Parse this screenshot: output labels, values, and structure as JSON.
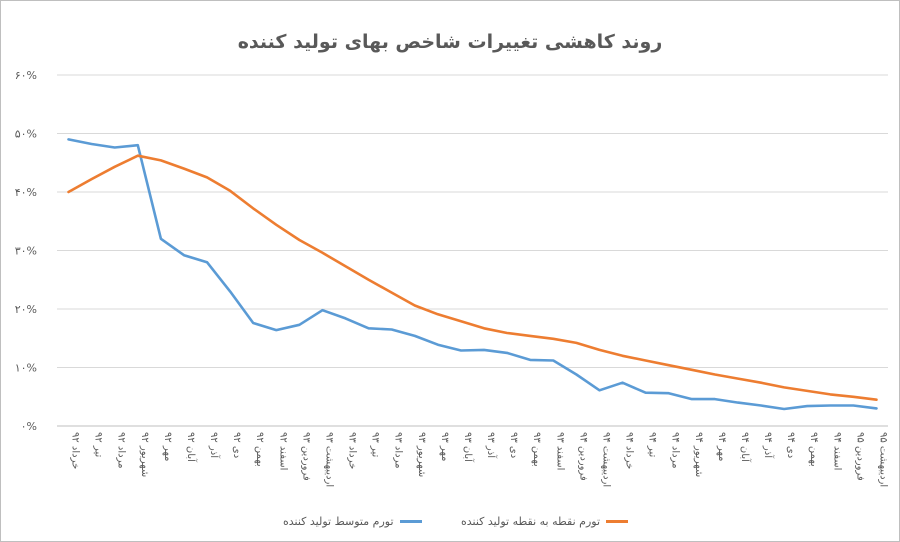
{
  "chart_data": {
    "type": "line",
    "title": "روند کاهشی تغییرات شاخص بهای تولید کننده",
    "xlabel": "",
    "ylabel": "",
    "ylim": [
      0,
      60
    ],
    "yticks": [
      0,
      10,
      20,
      30,
      40,
      50,
      60
    ],
    "ytick_labels": [
      "۰%",
      "۱۰%",
      "۲۰%",
      "۳۰%",
      "۴۰%",
      "۵۰%",
      "۶۰%"
    ],
    "grid": true,
    "legend_position": "bottom",
    "categories": [
      "خرداد ۹۲",
      "تیر ۹۲",
      "مرداد ۹۲",
      "شهریور ۹۲",
      "مهر ۹۲",
      "آبان ۹۲",
      "آذر ۹۲",
      "دی ۹۲",
      "بهمن ۹۲",
      "اسفند ۹۲",
      "فروردین ۹۳",
      "اردیبهشت ۹۳",
      "خرداد ۹۳",
      "تیر ۹۳",
      "مرداد ۹۳",
      "شهریور ۹۳",
      "مهر ۹۳",
      "آبان ۹۳",
      "آذر ۹۳",
      "دی ۹۳",
      "بهمن ۹۳",
      "اسفند ۹۳",
      "فروردین ۹۴",
      "اردیبهشت ۹۴",
      "خرداد ۹۴",
      "تیر ۹۴",
      "مرداد ۹۴",
      "شهریور ۹۴",
      "مهر ۹۴",
      "آبان ۹۴",
      "آذر ۹۴",
      "دی ۹۴",
      "بهمن ۹۴",
      "اسفند ۹۴",
      "فروردین ۹۵",
      "اردیبهشت ۹۵"
    ],
    "series": [
      {
        "name": "تورم متوسط تولید کننده",
        "color": "#5B9BD5",
        "values": [
          49.0,
          48.2,
          47.6,
          48.0,
          32.0,
          29.2,
          28.0,
          23.0,
          17.6,
          16.4,
          17.3,
          19.8,
          18.4,
          16.7,
          16.5,
          15.4,
          13.9,
          12.9,
          13.0,
          12.5,
          11.3,
          11.2,
          8.8,
          6.1,
          7.4,
          5.7,
          5.6,
          4.6,
          4.6,
          4.0,
          3.5,
          2.9,
          3.4,
          3.5,
          3.5,
          3.0
        ],
        "legend_label": "تورم متوسط تولید کننده"
      },
      {
        "name": "تورم نقطه به نقطه تولید کننده",
        "color": "#ED7D31",
        "values": [
          40.0,
          42.2,
          44.3,
          46.2,
          45.4,
          44.0,
          42.5,
          40.2,
          37.2,
          34.4,
          31.8,
          29.6,
          27.3,
          25.0,
          22.8,
          20.6,
          19.1,
          17.9,
          16.7,
          15.9,
          15.4,
          14.9,
          14.2,
          13.0,
          12.0,
          11.2,
          10.4,
          9.6,
          8.8,
          8.1,
          7.4,
          6.6,
          6.0,
          5.4,
          5.0,
          4.5
        ],
        "legend_label": "تورم نقطه به نقطه تولید کننده"
      }
    ]
  }
}
